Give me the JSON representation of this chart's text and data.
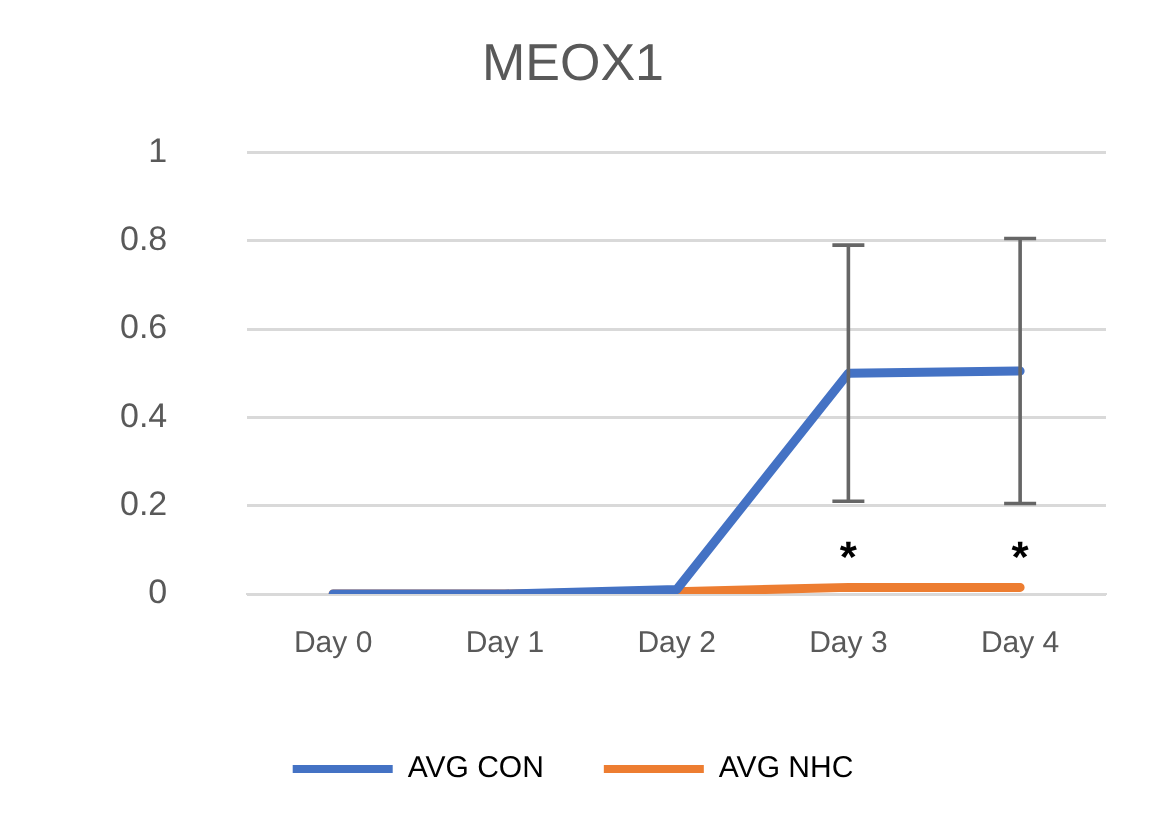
{
  "chart_data": {
    "type": "line",
    "title": "MEOX1",
    "categories": [
      "Day 0",
      "Day 1",
      "Day 2",
      "Day 3",
      "Day 4"
    ],
    "series": [
      {
        "name": "AVG CON",
        "color": "#4472c4",
        "values": [
          0,
          0,
          0.01,
          0.5,
          0.505
        ],
        "errors": [
          null,
          null,
          null,
          0.29,
          0.3
        ]
      },
      {
        "name": "AVG NHC",
        "color": "#ed7d31",
        "values": [
          0,
          0,
          0.005,
          0.015,
          0.015
        ]
      }
    ],
    "annotations": [
      {
        "text": "*",
        "x": "Day 3",
        "y": 0.015
      },
      {
        "text": "*",
        "x": "Day 4",
        "y": 0.015
      }
    ],
    "ylim": [
      0,
      1
    ],
    "yticks": [
      0,
      0.2,
      0.4,
      0.6,
      0.8,
      1
    ],
    "grid": "y",
    "legend": "bottom",
    "marker": "none",
    "line_style": "solid"
  }
}
